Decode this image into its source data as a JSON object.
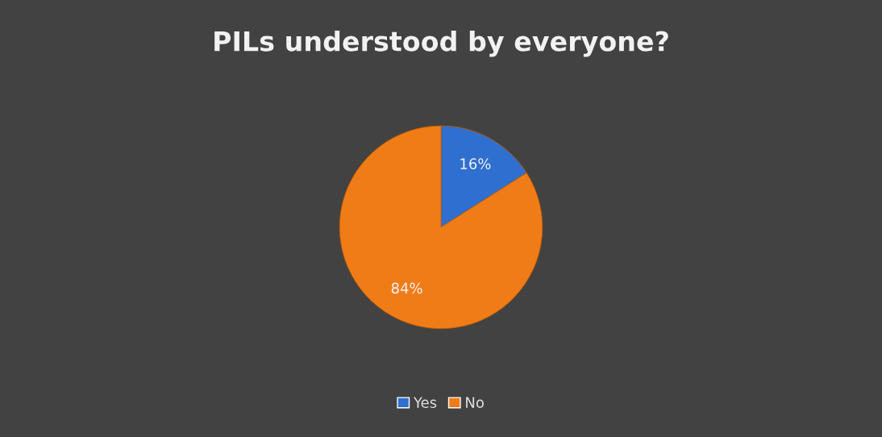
{
  "chart_data": {
    "type": "pie",
    "title": "PILs understood by everyone?",
    "categories": [
      "Yes",
      "No"
    ],
    "values": [
      16,
      84
    ],
    "colors": [
      "#2f6fd0",
      "#f07c18"
    ],
    "value_labels": [
      "16%",
      "84%"
    ],
    "legend": "bottom"
  }
}
